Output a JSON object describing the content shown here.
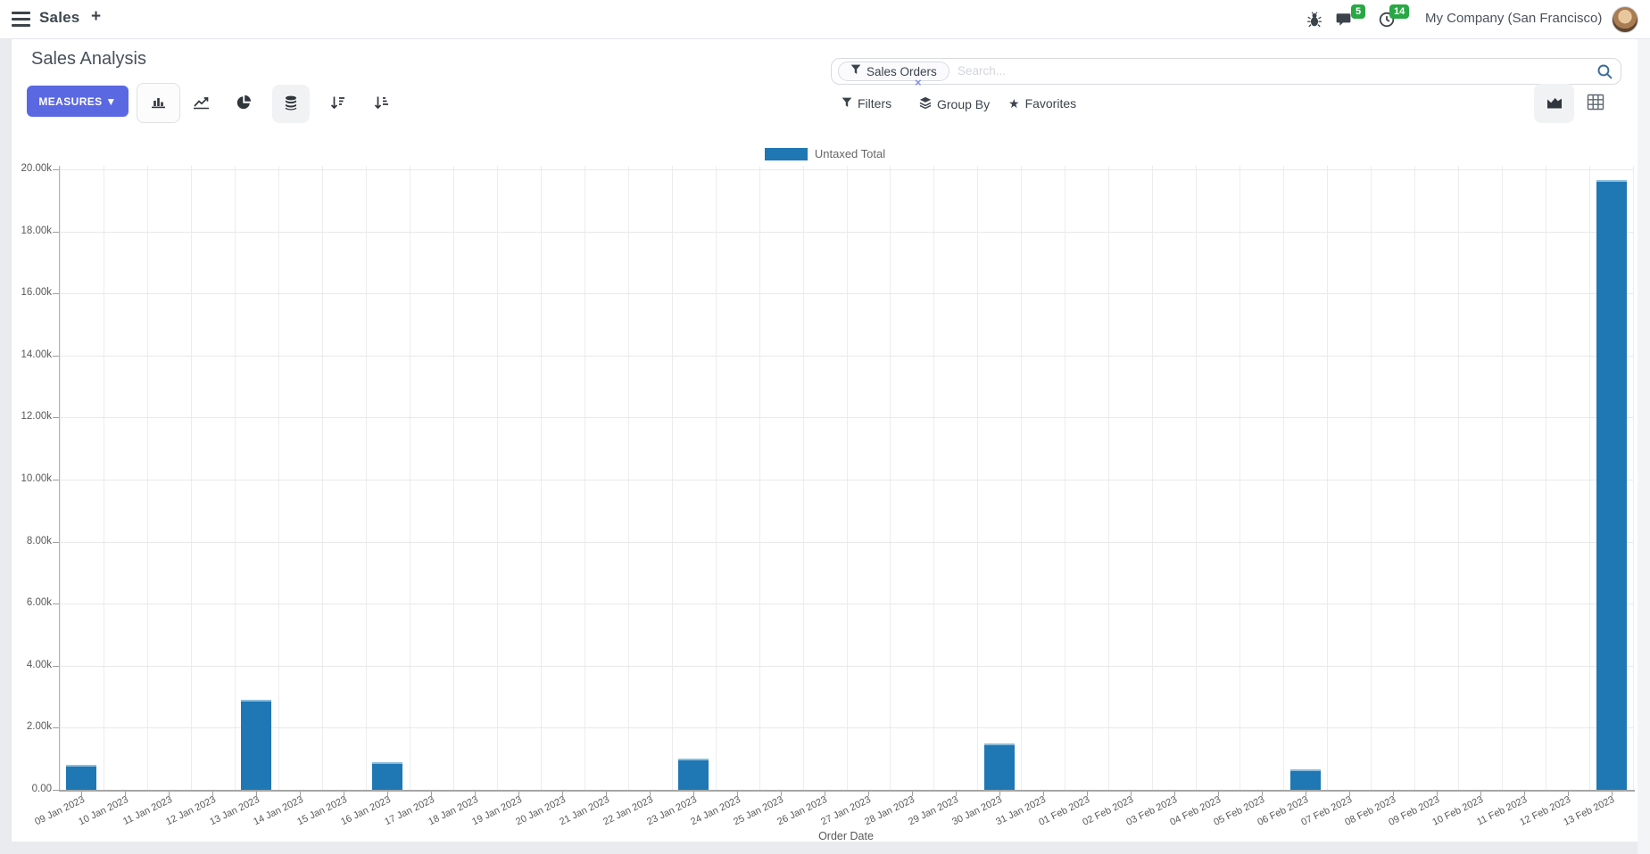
{
  "navbar": {
    "app_name": "Sales",
    "plus": "+",
    "messages_badge": "5",
    "activities_badge": "14",
    "company": "My Company (San Francisco)"
  },
  "control_panel": {
    "title": "Sales Analysis",
    "measures_label": "MEASURES ▼",
    "search": {
      "facet_label": "Sales Orders",
      "remove_facet": "×",
      "placeholder": "Search..."
    },
    "filter_buttons": [
      {
        "label": "Filters"
      },
      {
        "label": "Group By"
      },
      {
        "label": "Favorites"
      }
    ]
  },
  "chart_data": {
    "type": "bar",
    "title": "",
    "legend": [
      "Untaxed Total"
    ],
    "legend_position": "top-center",
    "grid": true,
    "xlabel": "Order Date",
    "ylabel": "",
    "ylim": [
      0,
      20000
    ],
    "y_ticks": [
      "20.00k",
      "18.00k",
      "16.00k",
      "14.00k",
      "12.00k",
      "10.00k",
      "8.00k",
      "6.00k",
      "4.00k",
      "2.00k",
      "0.00"
    ],
    "categories": [
      "09 Jan 2023",
      "10 Jan 2023",
      "11 Jan 2023",
      "12 Jan 2023",
      "13 Jan 2023",
      "14 Jan 2023",
      "15 Jan 2023",
      "16 Jan 2023",
      "17 Jan 2023",
      "18 Jan 2023",
      "19 Jan 2023",
      "20 Jan 2023",
      "21 Jan 2023",
      "22 Jan 2023",
      "23 Jan 2023",
      "24 Jan 2023",
      "25 Jan 2023",
      "26 Jan 2023",
      "27 Jan 2023",
      "28 Jan 2023",
      "29 Jan 2023",
      "30 Jan 2023",
      "31 Jan 2023",
      "01 Feb 2023",
      "02 Feb 2023",
      "03 Feb 2023",
      "04 Feb 2023",
      "05 Feb 2023",
      "06 Feb 2023",
      "07 Feb 2023",
      "08 Feb 2023",
      "09 Feb 2023",
      "10 Feb 2023",
      "11 Feb 2023",
      "12 Feb 2023",
      "13 Feb 2023"
    ],
    "series": [
      {
        "name": "Untaxed Total",
        "color": "#1f77b4",
        "values": [
          800,
          0,
          0,
          0,
          2900,
          0,
          0,
          900,
          0,
          0,
          0,
          0,
          0,
          0,
          1000,
          0,
          0,
          0,
          0,
          0,
          0,
          1500,
          0,
          0,
          0,
          0,
          0,
          0,
          650,
          0,
          0,
          0,
          0,
          0,
          0,
          19650
        ]
      }
    ]
  }
}
